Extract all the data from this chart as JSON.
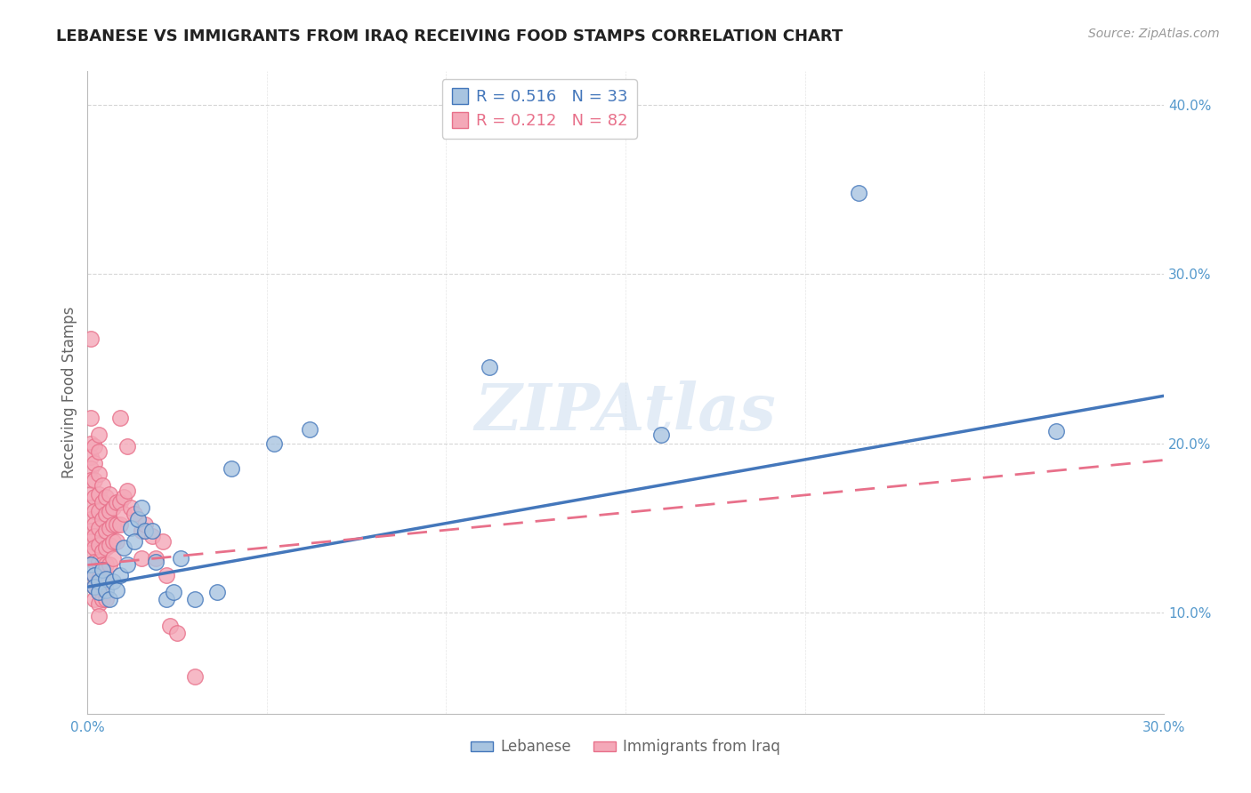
{
  "title": "LEBANESE VS IMMIGRANTS FROM IRAQ RECEIVING FOOD STAMPS CORRELATION CHART",
  "source": "Source: ZipAtlas.com",
  "ylabel": "Receiving Food Stamps",
  "xlim": [
    0.0,
    0.3
  ],
  "ylim": [
    0.04,
    0.42
  ],
  "xticks": [
    0.0,
    0.3
  ],
  "xtick_labels": [
    "0.0%",
    "30.0%"
  ],
  "yticks_right": [
    0.1,
    0.2,
    0.3,
    0.4
  ],
  "ytick_labels_right": [
    "10.0%",
    "20.0%",
    "30.0%",
    "40.0%"
  ],
  "legend_r1": "R = 0.516",
  "legend_n1": "N = 33",
  "legend_r2": "R = 0.212",
  "legend_n2": "N = 82",
  "color_blue": "#A8C4E0",
  "color_pink": "#F4A8B8",
  "color_blue_dark": "#4477BB",
  "color_pink_dark": "#E8708A",
  "color_axis_label": "#5599CC",
  "watermark": "ZIPAtlas",
  "blue_scatter": [
    [
      0.001,
      0.128
    ],
    [
      0.002,
      0.122
    ],
    [
      0.002,
      0.115
    ],
    [
      0.003,
      0.118
    ],
    [
      0.003,
      0.112
    ],
    [
      0.004,
      0.125
    ],
    [
      0.005,
      0.12
    ],
    [
      0.005,
      0.113
    ],
    [
      0.006,
      0.108
    ],
    [
      0.007,
      0.118
    ],
    [
      0.008,
      0.113
    ],
    [
      0.009,
      0.122
    ],
    [
      0.01,
      0.138
    ],
    [
      0.011,
      0.128
    ],
    [
      0.012,
      0.15
    ],
    [
      0.013,
      0.142
    ],
    [
      0.014,
      0.155
    ],
    [
      0.015,
      0.162
    ],
    [
      0.016,
      0.148
    ],
    [
      0.018,
      0.148
    ],
    [
      0.019,
      0.13
    ],
    [
      0.022,
      0.108
    ],
    [
      0.024,
      0.112
    ],
    [
      0.026,
      0.132
    ],
    [
      0.03,
      0.108
    ],
    [
      0.036,
      0.112
    ],
    [
      0.04,
      0.185
    ],
    [
      0.052,
      0.2
    ],
    [
      0.062,
      0.208
    ],
    [
      0.112,
      0.245
    ],
    [
      0.16,
      0.205
    ],
    [
      0.215,
      0.348
    ],
    [
      0.27,
      0.207
    ]
  ],
  "pink_scatter": [
    [
      0.001,
      0.262
    ],
    [
      0.001,
      0.215
    ],
    [
      0.001,
      0.2
    ],
    [
      0.001,
      0.192
    ],
    [
      0.001,
      0.185
    ],
    [
      0.001,
      0.178
    ],
    [
      0.001,
      0.17
    ],
    [
      0.001,
      0.162
    ],
    [
      0.001,
      0.155
    ],
    [
      0.001,
      0.148
    ],
    [
      0.001,
      0.142
    ],
    [
      0.001,
      0.135
    ],
    [
      0.002,
      0.198
    ],
    [
      0.002,
      0.188
    ],
    [
      0.002,
      0.178
    ],
    [
      0.002,
      0.168
    ],
    [
      0.002,
      0.16
    ],
    [
      0.002,
      0.152
    ],
    [
      0.002,
      0.145
    ],
    [
      0.002,
      0.138
    ],
    [
      0.002,
      0.13
    ],
    [
      0.002,
      0.122
    ],
    [
      0.002,
      0.115
    ],
    [
      0.002,
      0.108
    ],
    [
      0.003,
      0.205
    ],
    [
      0.003,
      0.195
    ],
    [
      0.003,
      0.182
    ],
    [
      0.003,
      0.17
    ],
    [
      0.003,
      0.16
    ],
    [
      0.003,
      0.15
    ],
    [
      0.003,
      0.14
    ],
    [
      0.003,
      0.13
    ],
    [
      0.003,
      0.12
    ],
    [
      0.003,
      0.112
    ],
    [
      0.003,
      0.105
    ],
    [
      0.003,
      0.098
    ],
    [
      0.004,
      0.175
    ],
    [
      0.004,
      0.165
    ],
    [
      0.004,
      0.155
    ],
    [
      0.004,
      0.145
    ],
    [
      0.004,
      0.136
    ],
    [
      0.004,
      0.128
    ],
    [
      0.004,
      0.118
    ],
    [
      0.004,
      0.108
    ],
    [
      0.005,
      0.168
    ],
    [
      0.005,
      0.158
    ],
    [
      0.005,
      0.148
    ],
    [
      0.005,
      0.138
    ],
    [
      0.005,
      0.128
    ],
    [
      0.005,
      0.118
    ],
    [
      0.005,
      0.108
    ],
    [
      0.006,
      0.17
    ],
    [
      0.006,
      0.16
    ],
    [
      0.006,
      0.15
    ],
    [
      0.006,
      0.14
    ],
    [
      0.006,
      0.128
    ],
    [
      0.007,
      0.162
    ],
    [
      0.007,
      0.152
    ],
    [
      0.007,
      0.142
    ],
    [
      0.007,
      0.132
    ],
    [
      0.008,
      0.165
    ],
    [
      0.008,
      0.152
    ],
    [
      0.008,
      0.142
    ],
    [
      0.009,
      0.215
    ],
    [
      0.009,
      0.165
    ],
    [
      0.009,
      0.152
    ],
    [
      0.01,
      0.168
    ],
    [
      0.01,
      0.158
    ],
    [
      0.011,
      0.198
    ],
    [
      0.011,
      0.172
    ],
    [
      0.012,
      0.162
    ],
    [
      0.013,
      0.158
    ],
    [
      0.015,
      0.148
    ],
    [
      0.015,
      0.132
    ],
    [
      0.016,
      0.152
    ],
    [
      0.018,
      0.145
    ],
    [
      0.019,
      0.132
    ],
    [
      0.021,
      0.142
    ],
    [
      0.022,
      0.122
    ],
    [
      0.023,
      0.092
    ],
    [
      0.025,
      0.088
    ],
    [
      0.03,
      0.062
    ]
  ],
  "blue_line": [
    [
      0.0,
      0.115
    ],
    [
      0.3,
      0.228
    ]
  ],
  "pink_line": [
    [
      0.0,
      0.128
    ],
    [
      0.3,
      0.19
    ]
  ],
  "legend_labels": [
    "Lebanese",
    "Immigrants from Iraq"
  ],
  "grid_color": "#CCCCCC",
  "background_color": "#FFFFFF",
  "title_fontsize": 13,
  "axis_tick_fontsize": 11,
  "ylabel_fontsize": 12
}
